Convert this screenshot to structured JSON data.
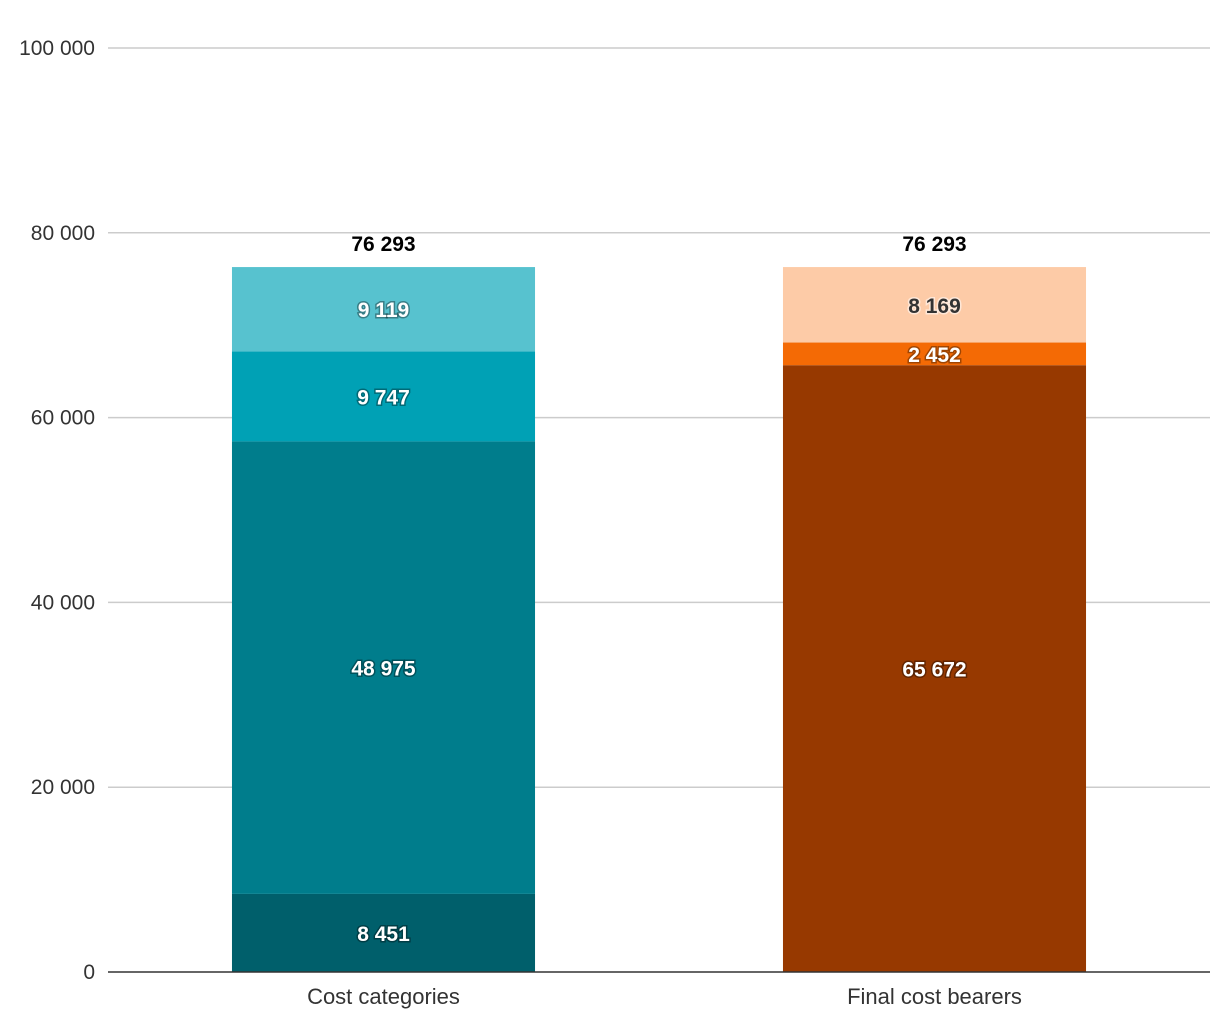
{
  "chart_data": {
    "type": "bar",
    "stacked": true,
    "categories": [
      "Cost categories",
      "Final cost bearers"
    ],
    "ylim": [
      0,
      100000
    ],
    "yticks": [
      0,
      20000,
      40000,
      60000,
      80000,
      100000
    ],
    "ytick_labels": [
      "0",
      "20 000",
      "40 000",
      "60 000",
      "80 000",
      "100 000"
    ],
    "grid": true,
    "legend": "none",
    "totals": [
      {
        "value": 76293,
        "label": "76 293"
      },
      {
        "value": 76293,
        "label": "76 293"
      }
    ],
    "stacks": [
      {
        "category": "Cost categories",
        "segments": [
          {
            "value": 8451,
            "label": "8 451",
            "color": "#005f6b"
          },
          {
            "value": 48975,
            "label": "48 975",
            "color": "#007d8c"
          },
          {
            "value": 9747,
            "label": "9 747",
            "color": "#00a1b5"
          },
          {
            "value": 9119,
            "label": "9 119",
            "color": "#57c2cf"
          }
        ]
      },
      {
        "category": "Final cost bearers",
        "segments": [
          {
            "value": 65672,
            "label": "65 672",
            "color": "#973900"
          },
          {
            "value": 2452,
            "label": "2 452",
            "color": "#f46a05"
          },
          {
            "value": 8169,
            "label": "8 169",
            "color": "#fdcba7"
          }
        ]
      }
    ]
  }
}
